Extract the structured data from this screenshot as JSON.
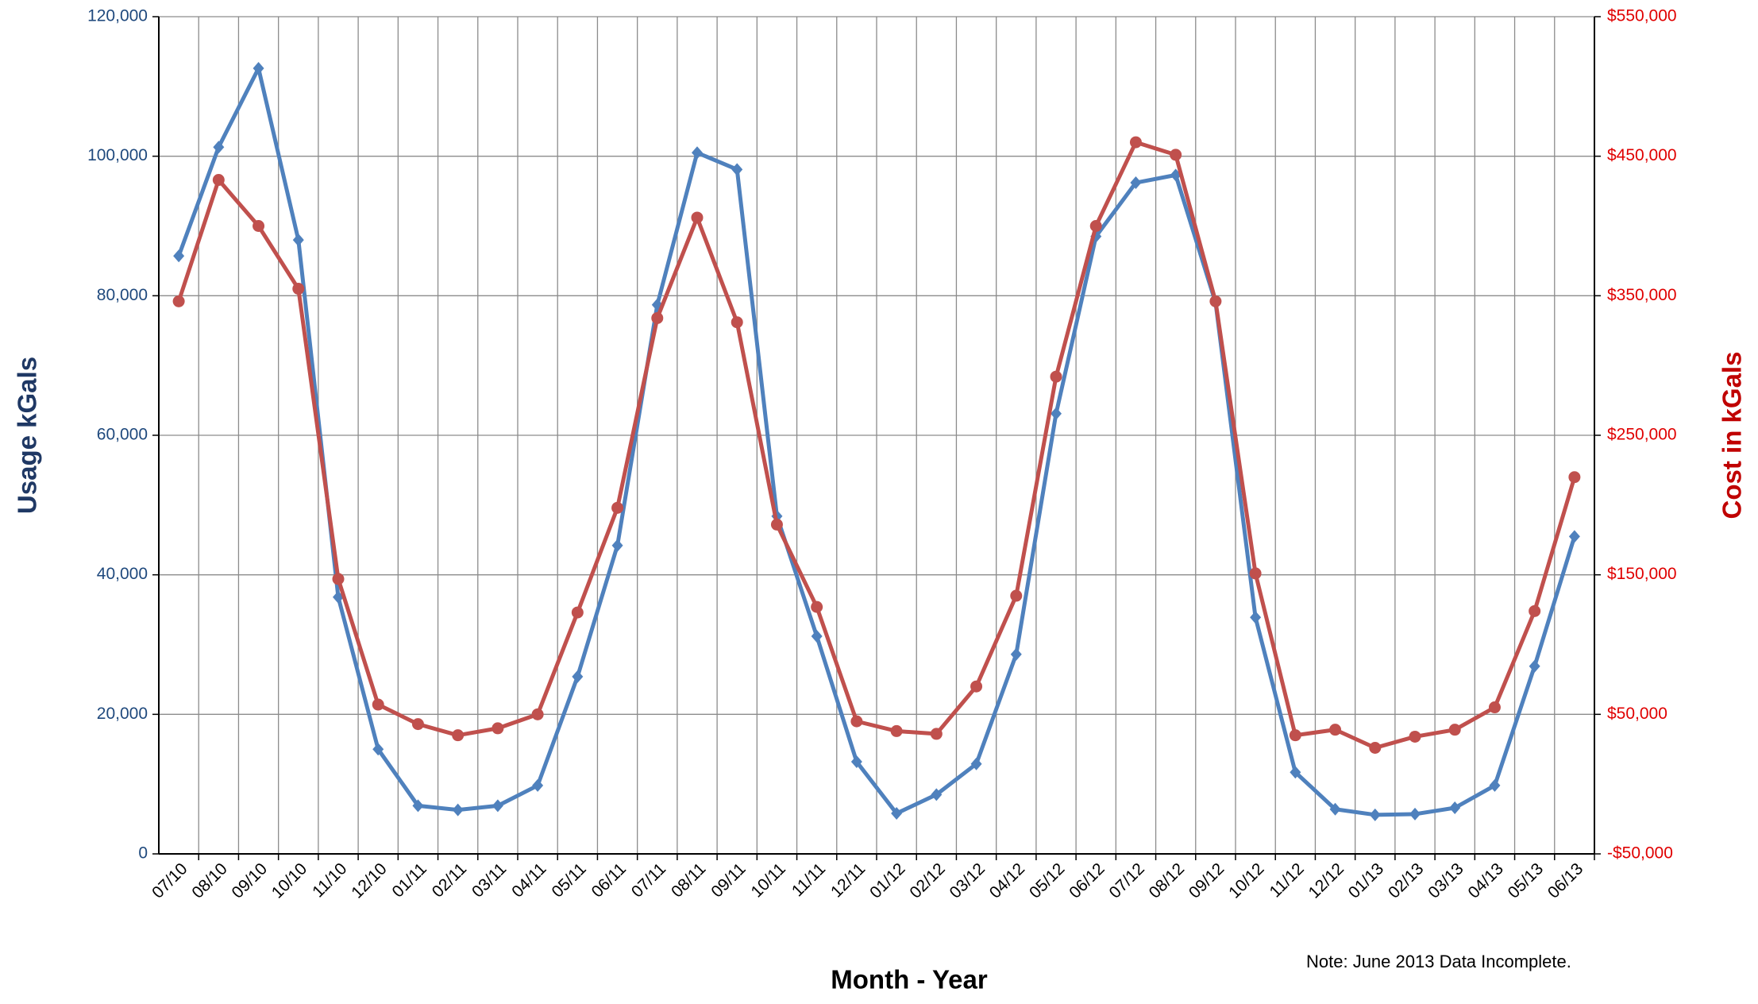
{
  "chart_data": {
    "type": "line",
    "xlabel": "Month - Year",
    "ylabel": "Usage kGals",
    "y2label": "Cost in kGals",
    "note": "Note:  June 2013 Data Incomplete.",
    "categories": [
      "07/10",
      "08/10",
      "09/10",
      "10/10",
      "11/10",
      "12/10",
      "01/11",
      "02/11",
      "03/11",
      "04/11",
      "05/11",
      "06/11",
      "07/11",
      "08/11",
      "09/11",
      "10/11",
      "11/11",
      "12/11",
      "01/12",
      "02/12",
      "03/12",
      "04/12",
      "05/12",
      "06/12",
      "07/12",
      "08/12",
      "09/12",
      "10/12",
      "11/12",
      "12/12",
      "01/13",
      "02/13",
      "03/13",
      "04/13",
      "05/13",
      "06/13"
    ],
    "series": [
      {
        "color": "#4f81bd",
        "marker": "diamond",
        "values": [
          85700,
          101300,
          112600,
          88000,
          36800,
          15000,
          6900,
          6300,
          6900,
          9800,
          25400,
          44200,
          78700,
          100500,
          98100,
          48400,
          31200,
          13200,
          5800,
          8500,
          12900,
          28600,
          63100,
          88500,
          96200,
          97300,
          79000,
          33900,
          11700,
          6400,
          5600,
          5700,
          6600,
          9800,
          26900,
          45500
        ]
      },
      {
        "color": "#c0504d",
        "marker": "circle",
        "axis": "y2",
        "values": [
          346000,
          433000,
          400000,
          355000,
          147000,
          57000,
          43000,
          35000,
          40000,
          50000,
          123000,
          198000,
          334000,
          406000,
          331000,
          186000,
          127000,
          45000,
          38000,
          36000,
          70000,
          135000,
          292000,
          400000,
          460000,
          451000,
          346000,
          151000,
          35000,
          39000,
          26000,
          34000,
          39000,
          55000,
          124000,
          220000
        ]
      }
    ],
    "ylim": [
      0,
      120000
    ],
    "yticks": [
      0,
      {
        "value": 20000,
        "label": "20,000"
      },
      {
        "value": 40000,
        "label": "40,000"
      },
      {
        "value": 60000,
        "label": "60,000"
      },
      {
        "value": 80000,
        "label": "80,000"
      },
      {
        "value": 100000,
        "label": "100,000"
      },
      {
        "value": 120000,
        "label": "120,000"
      }
    ],
    "y2lim": [
      -50000,
      550000
    ],
    "y2ticks": [
      {
        "value": -50000,
        "label": "-$50,000"
      },
      {
        "value": 50000,
        "label": "$50,000"
      },
      {
        "value": 150000,
        "label": "$150,000"
      },
      {
        "value": 250000,
        "label": "$250,000"
      },
      {
        "value": 350000,
        "label": "$350,000"
      },
      {
        "value": 450000,
        "label": "$450,000"
      },
      {
        "value": 550000,
        "label": "$550,000"
      }
    ],
    "grid": true
  }
}
